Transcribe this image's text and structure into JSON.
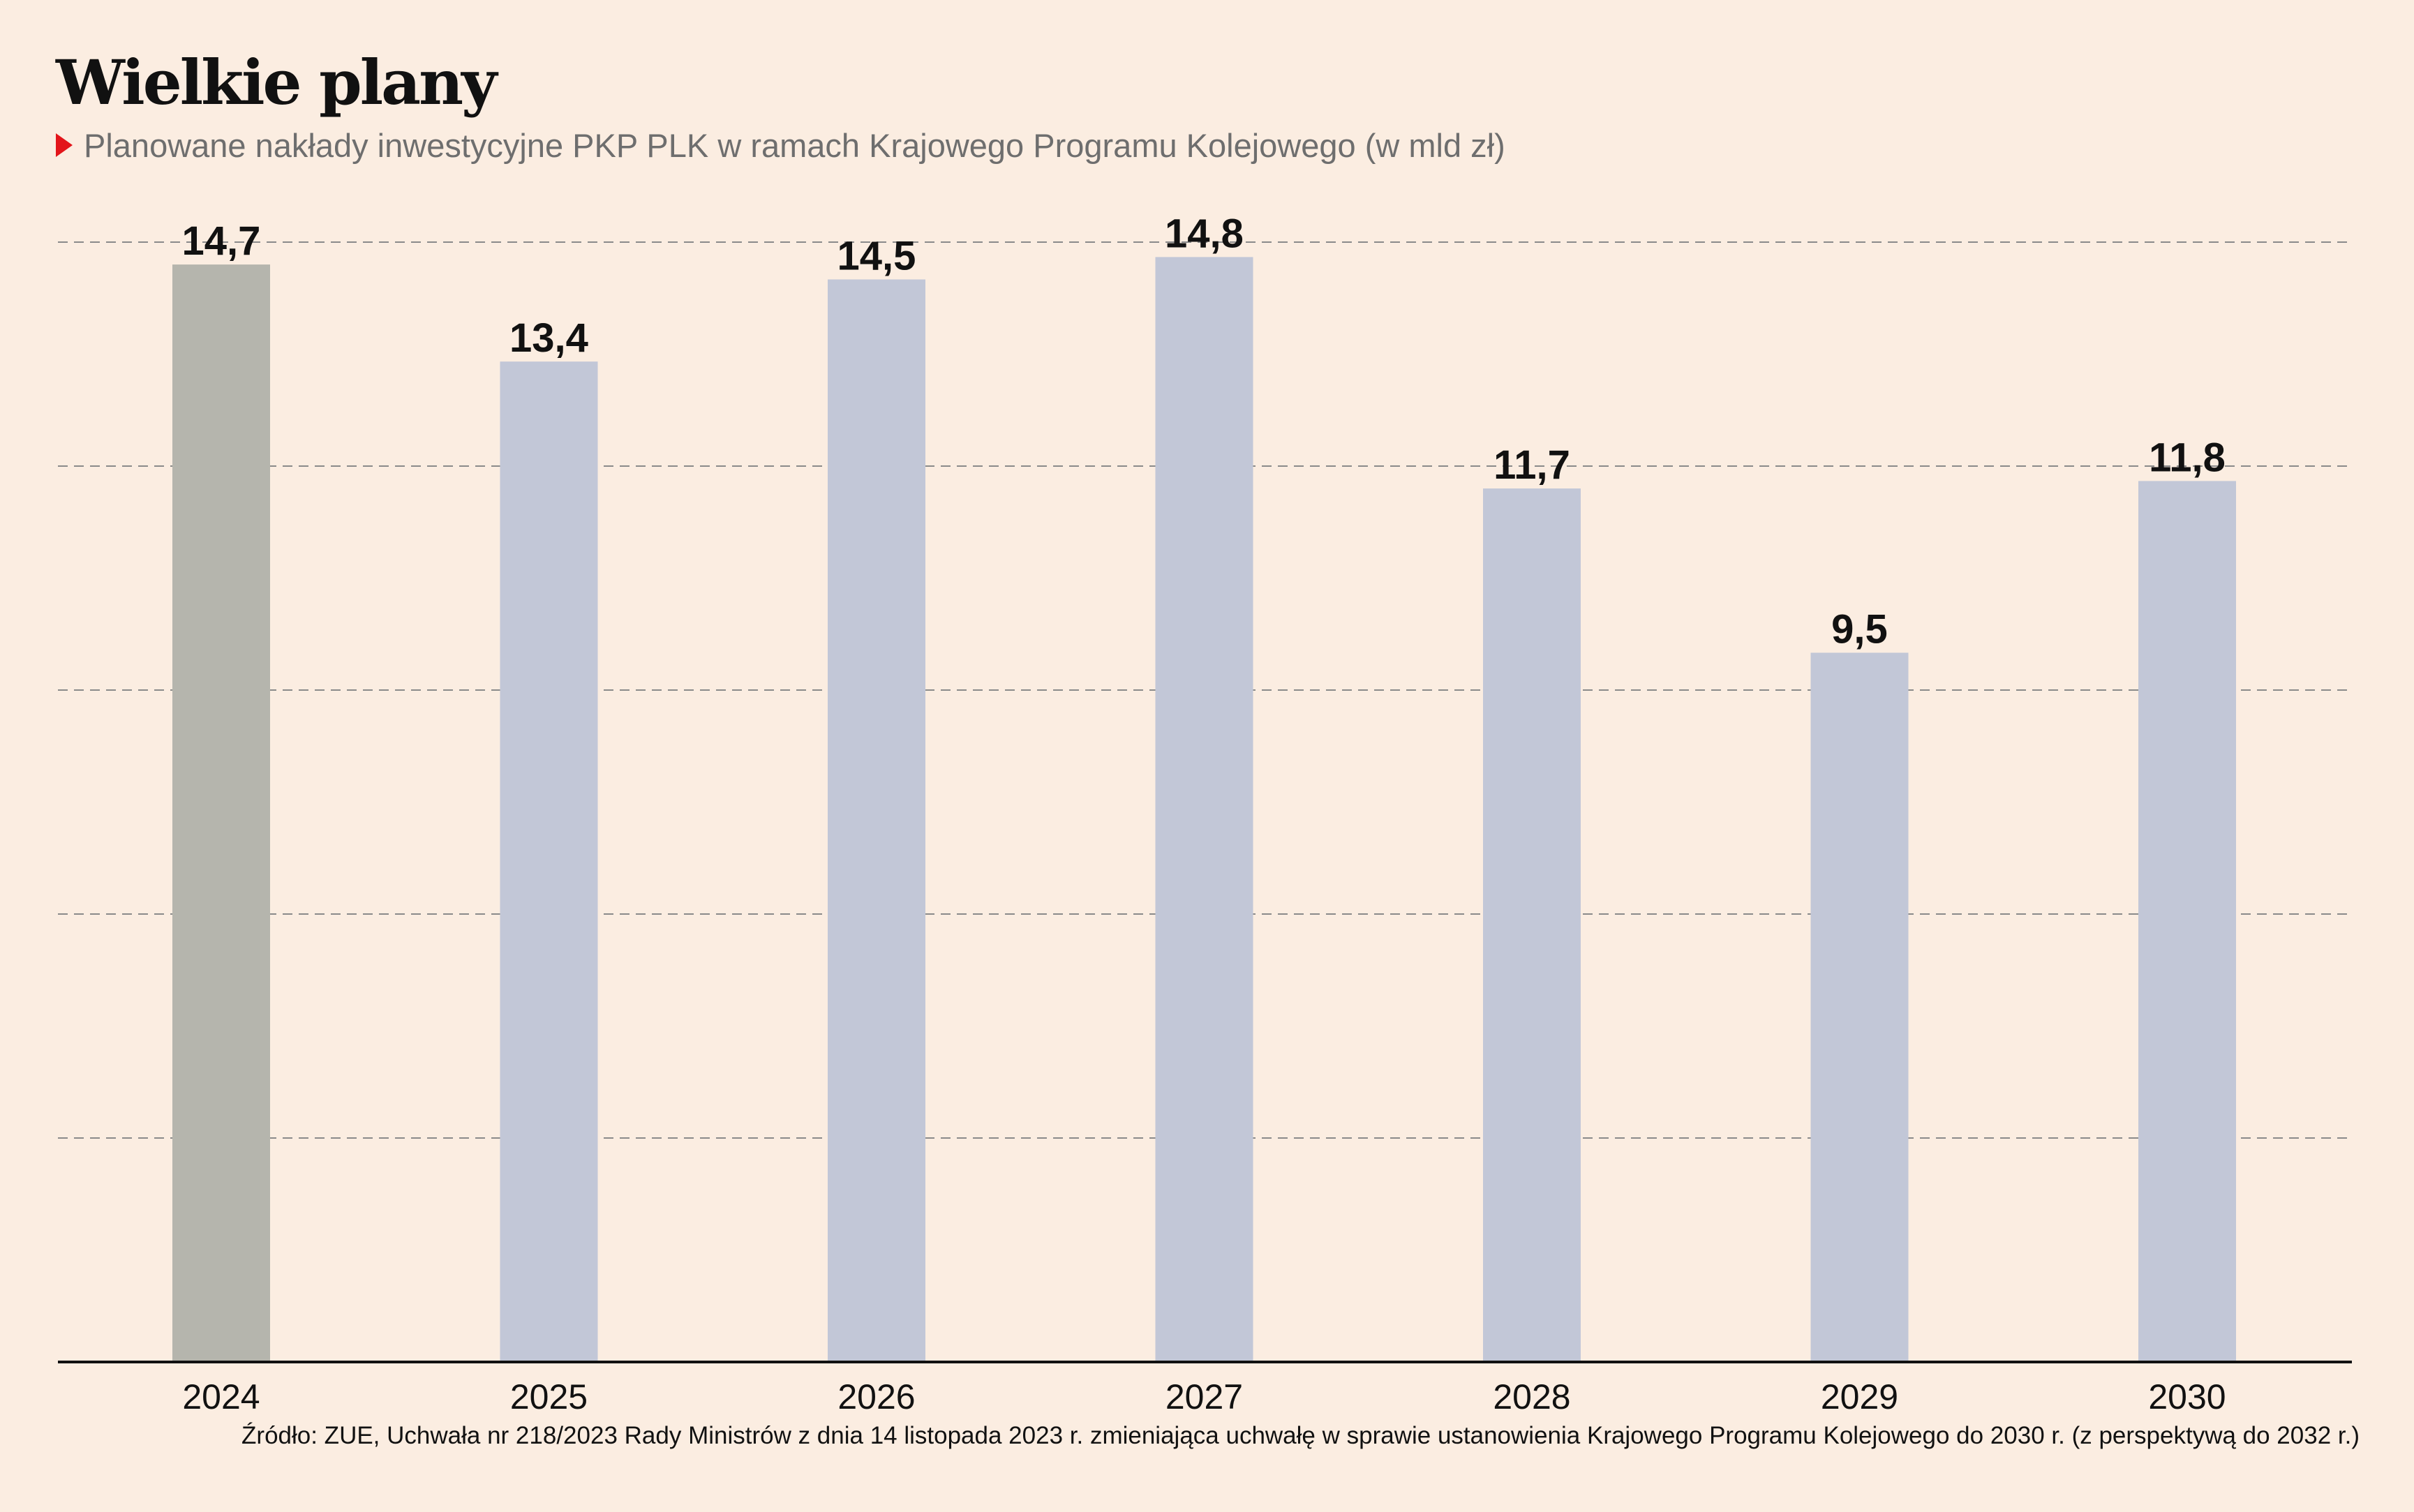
{
  "title": "Wielkie plany",
  "subtitle": "Planowane nakłady inwestycyjne PKP PLK w ramach Krajowego Programu Kolejowego (w mld zł)",
  "source": "Źródło: ZUE, Uchwała nr 218/2023 Rady Ministrów z dnia 14 listopada 2023 r. zmieniająca uchwałę w sprawie ustanowienia Krajowego Programu Kolejowego do 2030 r. (z perspektywą do 2032 r.)",
  "colors": {
    "background": "#fbede1",
    "bar_highlight": "#b5b5ad",
    "bar": "#c2c7d7",
    "marker": "#e3151a",
    "grid": "#8a8a8a",
    "axis": "#111111"
  },
  "chart_data": {
    "type": "bar",
    "categories": [
      "2024",
      "2025",
      "2026",
      "2027",
      "2028",
      "2029",
      "2030"
    ],
    "values": [
      14.7,
      13.4,
      14.5,
      14.8,
      11.7,
      9.5,
      11.8
    ],
    "value_labels": [
      "14,7",
      "13,4",
      "14,5",
      "14,8",
      "11,7",
      "9,5",
      "11,8"
    ],
    "highlight_index": 0,
    "ylim": [
      0,
      15
    ],
    "grid": true,
    "gridline_values": [
      3,
      6,
      9,
      12,
      15
    ],
    "xlabel": "",
    "ylabel": ""
  }
}
